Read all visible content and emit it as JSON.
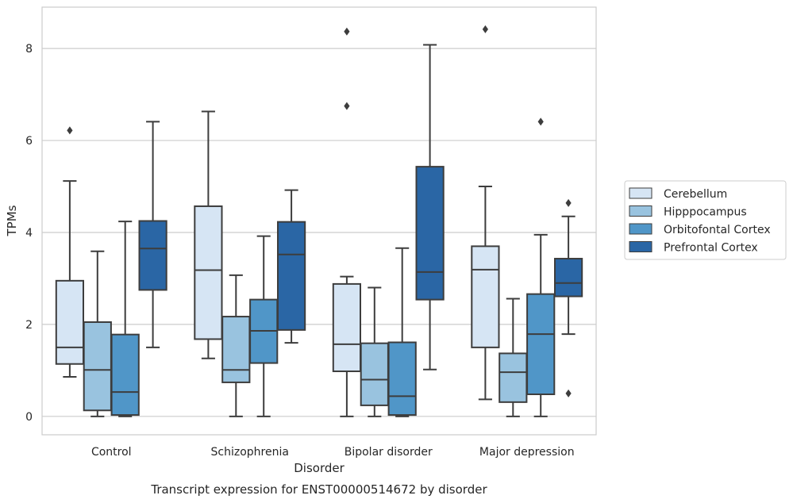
{
  "chart_data": {
    "type": "boxplot",
    "xlabel": "Disorder",
    "ylabel": "TPMs",
    "caption": "Transcript expression for ENST00000514672 by disorder",
    "ylim": [
      -0.4,
      8.9
    ],
    "yticks": [
      0,
      2,
      4,
      6,
      8
    ],
    "grid": true,
    "legend_position": "right",
    "categories": [
      "Control",
      "Schizophrenia",
      "Bipolar disorder",
      "Major depression"
    ],
    "series": [
      {
        "name": "Cerebellum",
        "color": "#d6e5f4",
        "boxes": [
          {
            "whislo": 0.86,
            "q1": 1.14,
            "med": 1.5,
            "q3": 2.95,
            "whishi": 5.12,
            "fliers": [
              6.22
            ]
          },
          {
            "whislo": 1.26,
            "q1": 1.68,
            "med": 3.18,
            "q3": 4.57,
            "whishi": 6.63,
            "fliers": []
          },
          {
            "whislo": 0.0,
            "q1": 0.98,
            "med": 1.57,
            "q3": 2.88,
            "whishi": 3.04,
            "fliers": [
              6.75,
              8.37
            ]
          },
          {
            "whislo": 0.37,
            "q1": 1.5,
            "med": 3.19,
            "q3": 3.7,
            "whishi": 5.0,
            "fliers": [
              8.42
            ]
          }
        ]
      },
      {
        "name": "Hipppocampus",
        "color": "#99c3df",
        "boxes": [
          {
            "whislo": 0.0,
            "q1": 0.13,
            "med": 1.01,
            "q3": 2.05,
            "whishi": 3.59,
            "fliers": []
          },
          {
            "whislo": 0.0,
            "q1": 0.74,
            "med": 1.01,
            "q3": 2.17,
            "whishi": 3.07,
            "fliers": []
          },
          {
            "whislo": 0.0,
            "q1": 0.24,
            "med": 0.8,
            "q3": 1.59,
            "whishi": 2.8,
            "fliers": []
          },
          {
            "whislo": 0.0,
            "q1": 0.31,
            "med": 0.96,
            "q3": 1.37,
            "whishi": 2.56,
            "fliers": []
          }
        ]
      },
      {
        "name": "Orbitofontal Cortex",
        "color": "#5096c8",
        "boxes": [
          {
            "whislo": 0.0,
            "q1": 0.03,
            "med": 0.53,
            "q3": 1.78,
            "whishi": 4.24,
            "fliers": []
          },
          {
            "whislo": 0.0,
            "q1": 1.16,
            "med": 1.86,
            "q3": 2.54,
            "whishi": 3.92,
            "fliers": []
          },
          {
            "whislo": 0.0,
            "q1": 0.03,
            "med": 0.44,
            "q3": 1.61,
            "whishi": 3.66,
            "fliers": []
          },
          {
            "whislo": 0.0,
            "q1": 0.48,
            "med": 1.79,
            "q3": 2.66,
            "whishi": 3.95,
            "fliers": [
              6.41
            ]
          }
        ]
      },
      {
        "name": "Prefrontal Cortex",
        "color": "#2a66a5",
        "boxes": [
          {
            "whislo": 1.5,
            "q1": 2.75,
            "med": 3.65,
            "q3": 4.25,
            "whishi": 6.41,
            "fliers": []
          },
          {
            "whislo": 1.6,
            "q1": 1.88,
            "med": 3.52,
            "q3": 4.23,
            "whishi": 4.92,
            "fliers": []
          },
          {
            "whislo": 1.02,
            "q1": 2.54,
            "med": 3.14,
            "q3": 5.43,
            "whishi": 8.08,
            "fliers": []
          },
          {
            "whislo": 1.79,
            "q1": 2.61,
            "med": 2.9,
            "q3": 3.43,
            "whishi": 4.35,
            "fliers": [
              4.64,
              0.5
            ]
          }
        ]
      }
    ]
  }
}
